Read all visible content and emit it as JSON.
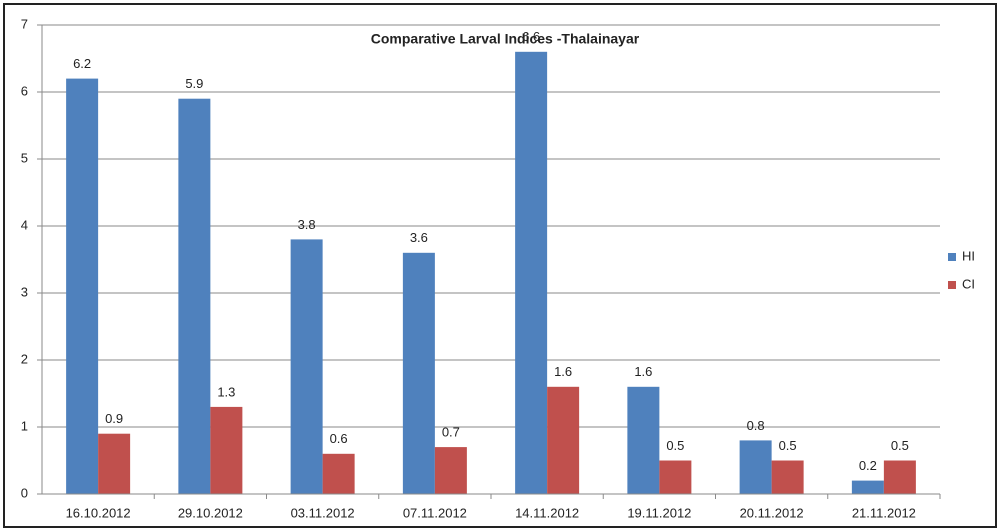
{
  "chart_data": {
    "type": "bar",
    "title": "Comparative Larval Indices -Thalainayar",
    "categories": [
      "16.10.2012",
      "29.10.2012",
      "03.11.2012",
      "07.11.2012",
      "14.11.2012",
      "19.11.2012",
      "20.11.2012",
      "21.11.2012"
    ],
    "series": [
      {
        "name": "HI",
        "color": "#4f81bd",
        "values": [
          6.2,
          5.9,
          3.8,
          3.6,
          6.6,
          1.6,
          0.8,
          0.2
        ]
      },
      {
        "name": "CI",
        "color": "#c0504d",
        "values": [
          0.9,
          1.3,
          0.6,
          0.7,
          1.6,
          0.5,
          0.5,
          0.5
        ]
      }
    ],
    "ylim": [
      0,
      7
    ],
    "yticks": [
      0,
      1,
      2,
      3,
      4,
      5,
      6,
      7
    ],
    "grid": true,
    "legend": "right"
  }
}
